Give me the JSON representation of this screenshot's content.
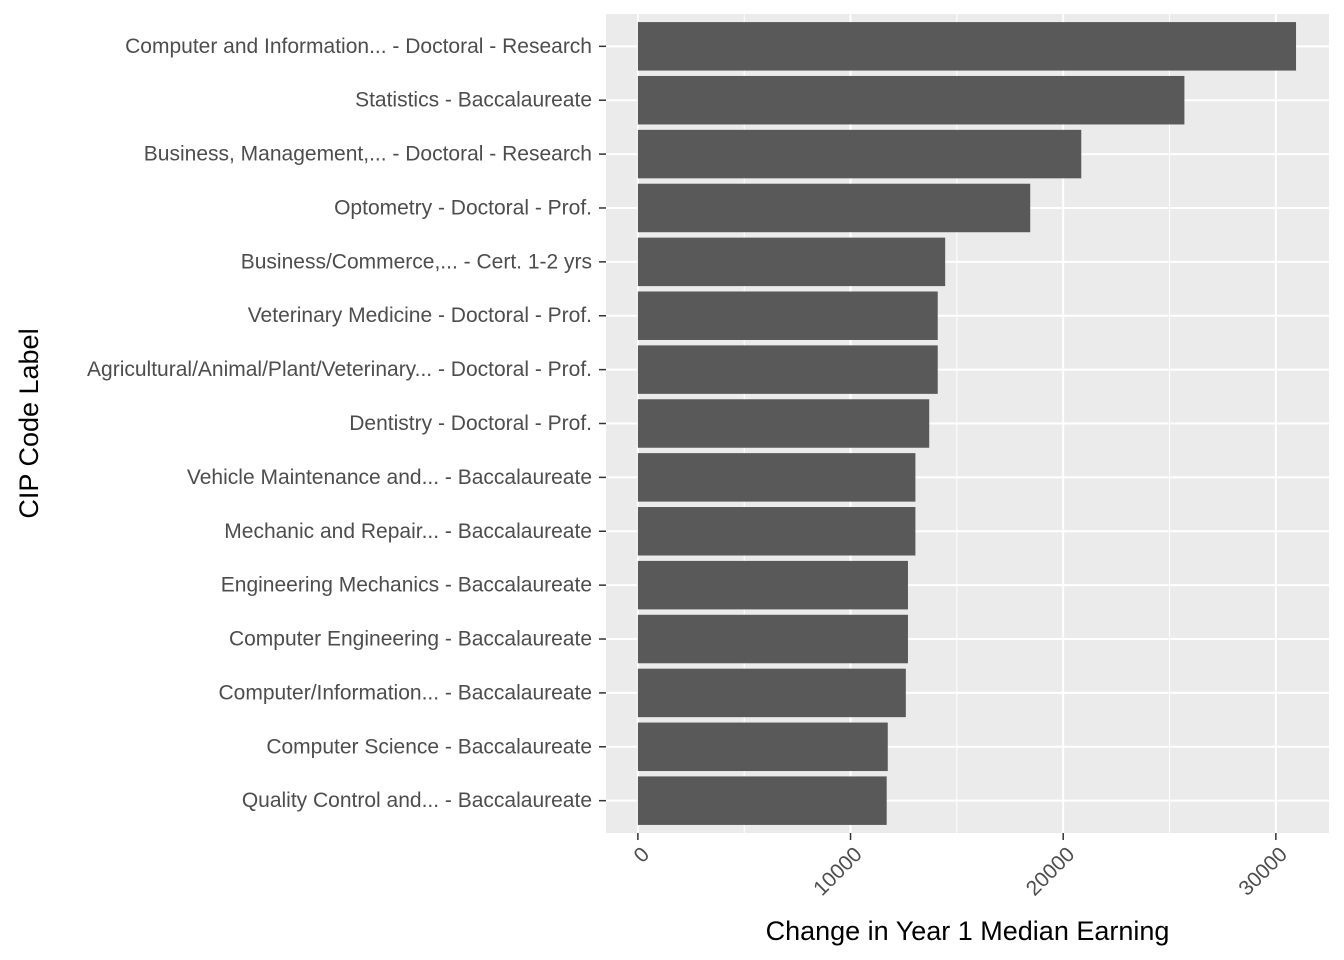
{
  "chart_data": {
    "type": "bar",
    "orientation": "horizontal",
    "title": "",
    "xlabel": "Change in Year 1 Median Earning",
    "ylabel": "CIP Code Label",
    "categories": [
      "Computer and Information... - Doctoral - Research",
      "Statistics - Baccalaureate",
      "Business, Management,... - Doctoral - Research",
      "Optometry - Doctoral - Prof.",
      "Business/Commerce,... - Cert. 1-2 yrs",
      "Veterinary Medicine - Doctoral - Prof.",
      "Agricultural/Animal/Plant/Veterinary... - Doctoral - Prof.",
      "Dentistry - Doctoral - Prof.",
      "Vehicle Maintenance and... - Baccalaureate",
      "Mechanic and Repair... - Baccalaureate",
      "Engineering Mechanics - Baccalaureate",
      "Computer Engineering - Baccalaureate",
      "Computer/Information... - Baccalaureate",
      "Computer Science - Baccalaureate",
      "Quality Control and... - Baccalaureate"
    ],
    "values": [
      30950,
      25700,
      20850,
      18450,
      14450,
      14100,
      14100,
      13700,
      13050,
      13050,
      12700,
      12700,
      12600,
      11750,
      11700
    ],
    "xlim": [
      -1500,
      32500
    ],
    "x_ticks": [
      "0",
      "10000",
      "20000",
      "30000"
    ],
    "x_tick_values": [
      0,
      10000,
      20000,
      30000
    ],
    "x_minor_values": [
      5000,
      15000,
      25000
    ],
    "grid": true,
    "colors": {
      "bar": "#595959",
      "panel": "#ebebeb",
      "grid": "#ffffff",
      "tick_text": "#4d4d4d",
      "axis_title": "#000000",
      "tick_mark": "#333333"
    }
  }
}
